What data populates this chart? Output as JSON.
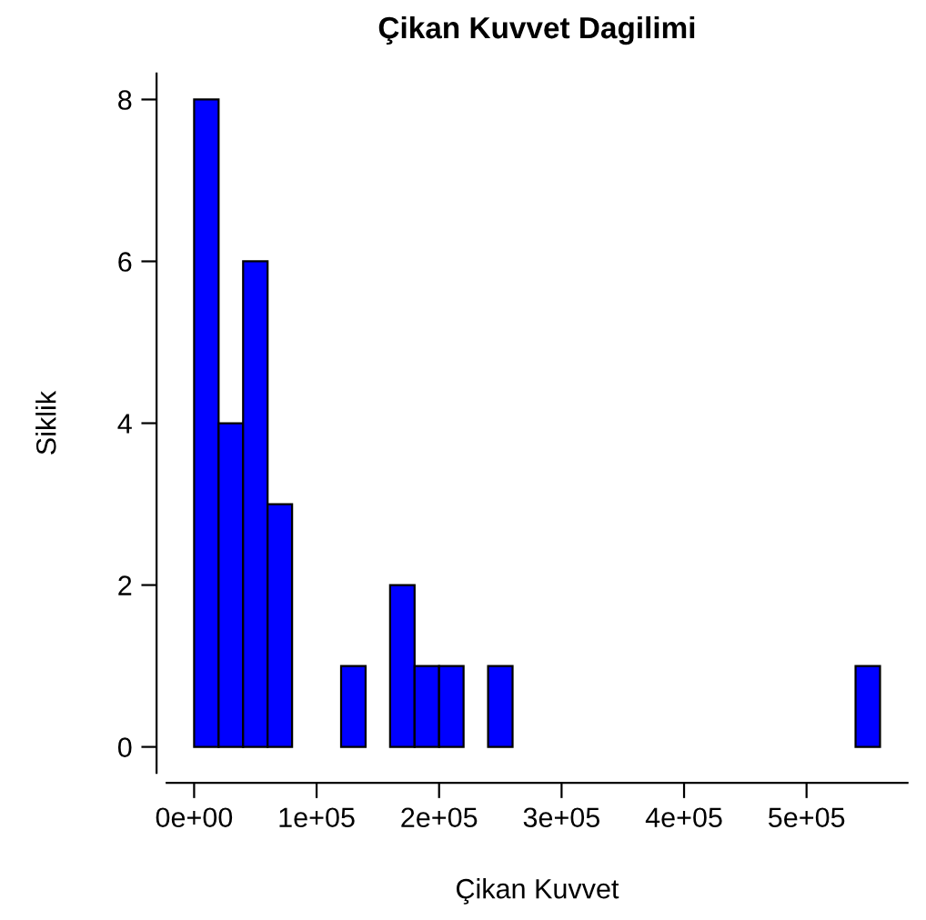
{
  "chart_data": {
    "type": "histogram",
    "title": "Çikan Kuvvet Dagilimi",
    "xlabel": "Çikan Kuvvet",
    "ylabel": "Siklik",
    "bins": [
      0,
      20000,
      40000,
      60000,
      80000,
      100000,
      120000,
      140000,
      160000,
      180000,
      200000,
      220000,
      240000,
      260000,
      280000,
      300000,
      320000,
      340000,
      360000,
      380000,
      400000,
      420000,
      440000,
      460000,
      480000,
      500000,
      520000,
      540000,
      560000
    ],
    "values": [
      8,
      4,
      6,
      3,
      0,
      0,
      1,
      0,
      2,
      1,
      1,
      0,
      1,
      0,
      0,
      0,
      0,
      0,
      0,
      0,
      0,
      0,
      0,
      0,
      0,
      0,
      0,
      1
    ],
    "color": "#0000ff",
    "xlim": [
      -22400,
      582400
    ],
    "ylim": [
      -0.32,
      8.32
    ],
    "xticks": [
      {
        "value": 0,
        "label": "0e+00"
      },
      {
        "value": 100000,
        "label": "1e+05"
      },
      {
        "value": 200000,
        "label": "2e+05"
      },
      {
        "value": 300000,
        "label": "3e+05"
      },
      {
        "value": 400000,
        "label": "4e+05"
      },
      {
        "value": 500000,
        "label": "5e+05"
      }
    ],
    "yticks": [
      0,
      2,
      4,
      6,
      8
    ],
    "grid": false
  }
}
